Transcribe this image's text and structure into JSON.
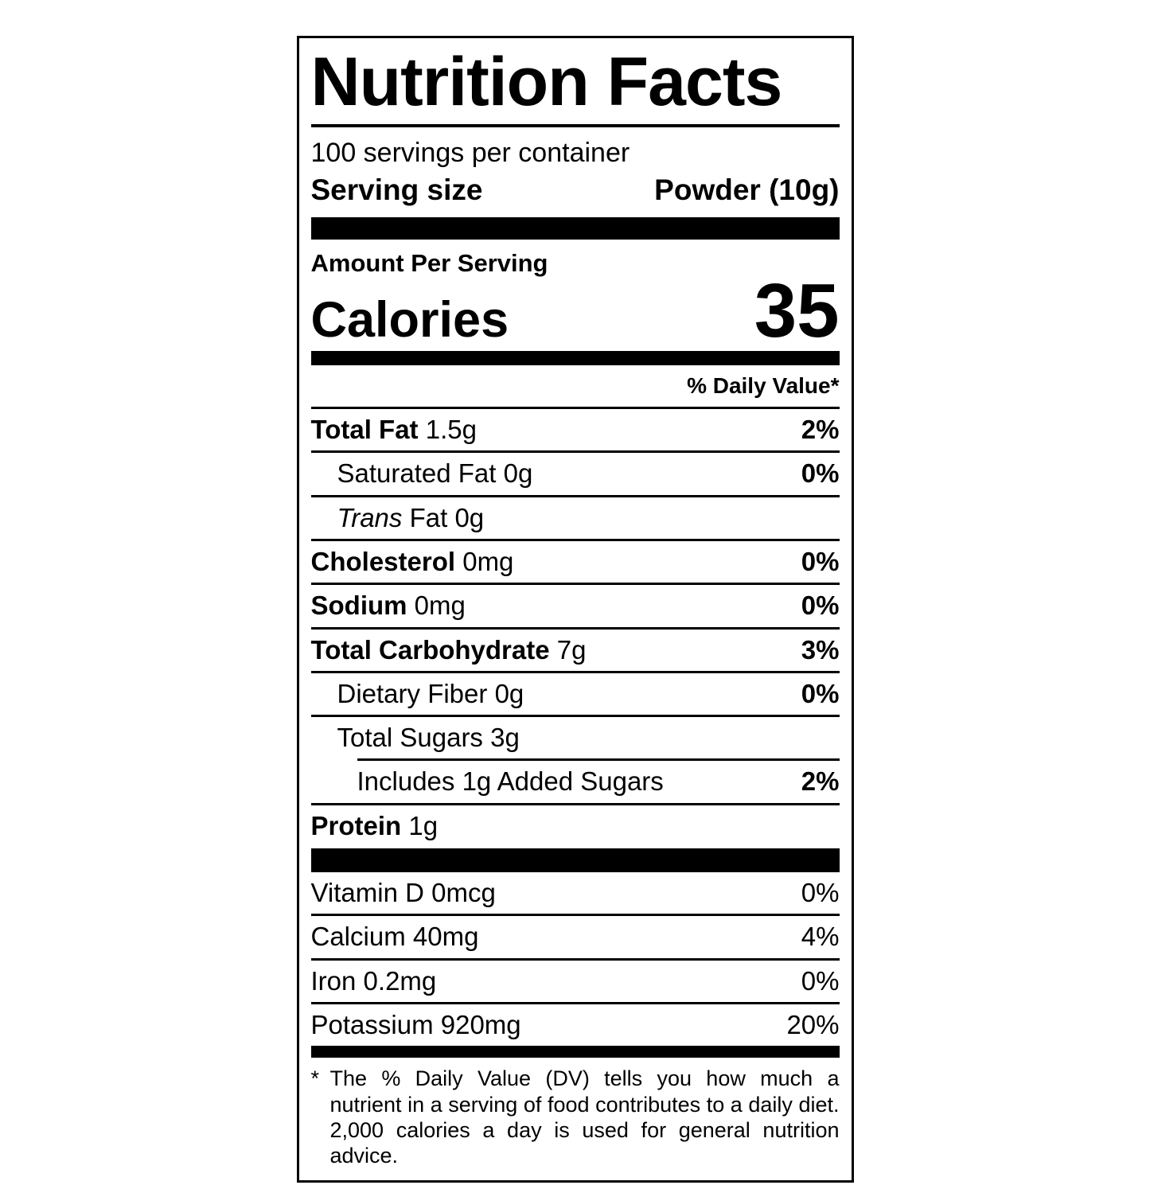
{
  "colors": {
    "ink": "#000000",
    "paper": "#ffffff"
  },
  "label": {
    "title": "Nutrition Facts",
    "servings_per_container": "100 servings per container",
    "serving_size": {
      "label": "Serving size",
      "value": "Powder (10g)"
    },
    "amount_per_serving": "Amount Per Serving",
    "calories": {
      "label": "Calories",
      "value": "35"
    },
    "daily_value_header": "% Daily Value*",
    "nutrients": [
      {
        "name": "Total Fat",
        "amount": "1.5g",
        "percent": "2%"
      },
      {
        "name": "Saturated Fat",
        "amount": "0g",
        "percent": "0%"
      },
      {
        "name_italic": "Trans",
        "name_rest": " Fat",
        "amount": "0g",
        "percent": ""
      },
      {
        "name": "Cholesterol",
        "amount": "0mg",
        "percent": "0%"
      },
      {
        "name": "Sodium",
        "amount": "0mg",
        "percent": "0%"
      },
      {
        "name": "Total Carbohydrate",
        "amount": "7g",
        "percent": "3%"
      },
      {
        "name": "Dietary Fiber",
        "amount": "0g",
        "percent": "0%"
      },
      {
        "name": "Total Sugars",
        "amount": "3g",
        "percent": ""
      },
      {
        "name": "Includes 1g Added Sugars",
        "amount": "",
        "percent": "2%"
      },
      {
        "name": "Protein",
        "amount": "1g",
        "percent": ""
      }
    ],
    "micronutrients": [
      {
        "name": "Vitamin D",
        "amount": "0mcg",
        "percent": "0%"
      },
      {
        "name": "Calcium",
        "amount": "40mg",
        "percent": "4%"
      },
      {
        "name": "Iron",
        "amount": "0.2mg",
        "percent": "0%"
      },
      {
        "name": "Potassium",
        "amount": "920mg",
        "percent": "20%"
      }
    ],
    "footnote": {
      "marker": "*",
      "text": "The % Daily Value (DV) tells you how much a nutrient in a serving of food contributes to a daily diet. 2,000 calories a day is used for general nutrition advice."
    }
  }
}
